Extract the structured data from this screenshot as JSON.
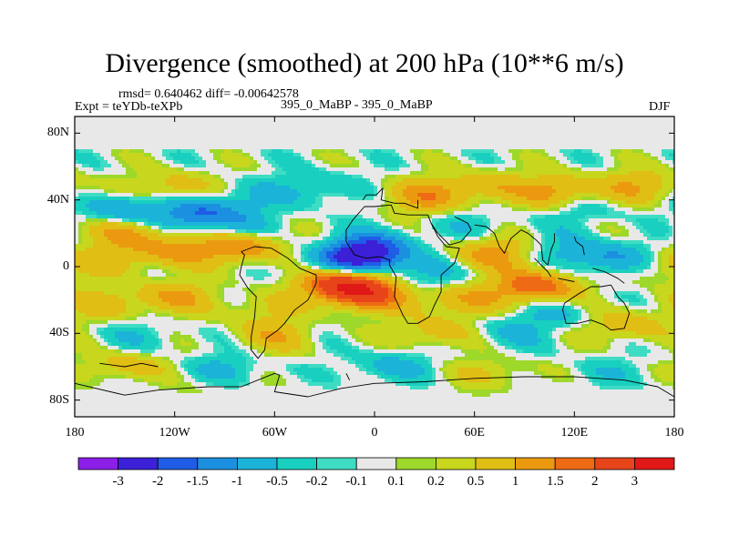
{
  "chart_data": {
    "type": "heatmap",
    "title": "Divergence (smoothed) at 200 hPa (10**6 m/s)",
    "stats_text": "rmsd= 0.640462  diff= -0.00642578",
    "experiment_text": "Expt = teYDb-teXPb",
    "comparison_text": "395_0_MaBP - 395_0_MaBP",
    "season": "DJF",
    "units": "10**6 m/s",
    "xlim": [
      -180,
      180
    ],
    "ylim": [
      -90,
      90
    ],
    "x_ticks": [
      -180,
      -120,
      -60,
      0,
      60,
      120,
      180
    ],
    "x_tick_labels": [
      "180",
      "120W",
      "60W",
      "0",
      "60E",
      "120E",
      "180"
    ],
    "y_ticks": [
      80,
      40,
      0,
      -40,
      -80
    ],
    "y_tick_labels": [
      "80N",
      "40N",
      "0",
      "40S",
      "80S"
    ],
    "colorbar": {
      "colors": [
        "#8c1ee8",
        "#3b20d8",
        "#1f5de6",
        "#1c90e0",
        "#1bb4d8",
        "#19cfc0",
        "#3fdcc4",
        "#e8e8e8",
        "#9ed82a",
        "#c8d61e",
        "#e0be14",
        "#eb9a10",
        "#ee6a14",
        "#e8441a",
        "#e01818"
      ],
      "labels": [
        "-3",
        "-2",
        "-1.5",
        "-1",
        "-0.5",
        "-0.2",
        "-0.1",
        "0.1",
        "0.2",
        "0.5",
        "1",
        "1.5",
        "2",
        "3"
      ]
    },
    "features": [
      {
        "lon": -150,
        "lat": 22,
        "value": 1.2
      },
      {
        "lon": -150,
        "lat": 33,
        "value": -1.3
      },
      {
        "lon": -105,
        "lat": 32,
        "value": -1.5
      },
      {
        "lon": -82,
        "lat": 24,
        "value": -0.6
      },
      {
        "lon": -120,
        "lat": 47,
        "value": 0.9
      },
      {
        "lon": -75,
        "lat": 42,
        "value": -0.4
      },
      {
        "lon": -35,
        "lat": 47,
        "value": -0.6
      },
      {
        "lon": 30,
        "lat": 42,
        "value": 1.2
      },
      {
        "lon": 65,
        "lat": 48,
        "value": 0.8
      },
      {
        "lon": 110,
        "lat": 45,
        "value": 1.3
      },
      {
        "lon": 160,
        "lat": 48,
        "value": 1.0
      },
      {
        "lon": 125,
        "lat": 35,
        "value": -0.5
      },
      {
        "lon": 60,
        "lat": 25,
        "value": -0.4
      },
      {
        "lon": -120,
        "lat": 10,
        "value": 1.1
      },
      {
        "lon": -80,
        "lat": 12,
        "value": 1.5
      },
      {
        "lon": -155,
        "lat": 5,
        "value": 0.6
      },
      {
        "lon": -8,
        "lat": 6,
        "value": -2.2
      },
      {
        "lon": 2,
        "lat": 12,
        "value": -1.0
      },
      {
        "lon": -22,
        "lat": -9,
        "value": 2.5
      },
      {
        "lon": -5,
        "lat": -16,
        "value": 2.2
      },
      {
        "lon": -28,
        "lat": -2,
        "value": -0.8
      },
      {
        "lon": 30,
        "lat": -5,
        "value": -0.7
      },
      {
        "lon": 50,
        "lat": -20,
        "value": 1.0
      },
      {
        "lon": 70,
        "lat": 8,
        "value": 1.2
      },
      {
        "lon": 115,
        "lat": 10,
        "value": -0.5
      },
      {
        "lon": 145,
        "lat": 4,
        "value": -1.2
      },
      {
        "lon": 168,
        "lat": 0,
        "value": 0.7
      },
      {
        "lon": 97,
        "lat": -12,
        "value": 2.0
      },
      {
        "lon": 110,
        "lat": -28,
        "value": -0.6
      },
      {
        "lon": -160,
        "lat": -22,
        "value": 0.7
      },
      {
        "lon": -120,
        "lat": -18,
        "value": 1.0
      },
      {
        "lon": -70,
        "lat": -26,
        "value": 0.5
      },
      {
        "lon": -140,
        "lat": -42,
        "value": -0.4
      },
      {
        "lon": -60,
        "lat": -42,
        "value": 0.8
      },
      {
        "lon": 35,
        "lat": -40,
        "value": 0.8
      },
      {
        "lon": 80,
        "lat": -40,
        "value": -0.5
      },
      {
        "lon": 150,
        "lat": -35,
        "value": 0.9
      },
      {
        "lon": -150,
        "lat": -60,
        "value": 0.8
      },
      {
        "lon": -90,
        "lat": -62,
        "value": -0.6
      },
      {
        "lon": 10,
        "lat": -60,
        "value": -0.7
      },
      {
        "lon": 70,
        "lat": -65,
        "value": 0.6
      },
      {
        "lon": 140,
        "lat": -65,
        "value": -0.4
      },
      {
        "lon": -100,
        "lat": -80,
        "value": 0.4
      },
      {
        "lon": 60,
        "lat": -82,
        "value": 0.3
      }
    ]
  }
}
